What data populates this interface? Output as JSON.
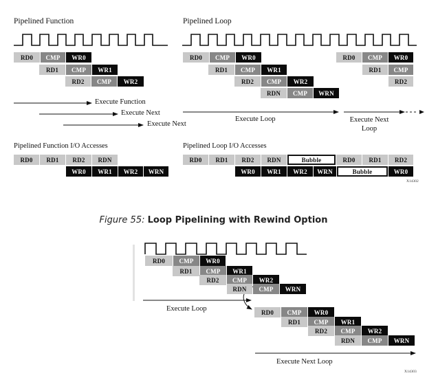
{
  "figure_top": {
    "pipelined_function": {
      "title": "Pipelined Function",
      "ops": {
        "rd0": "RD0",
        "rd1": "RD1",
        "rd2": "RD2",
        "cmp": "CMP",
        "wr0": "WR0",
        "wr1": "WR1",
        "wr2": "WR2"
      },
      "arrows": [
        "Execute Function",
        "Execute Next",
        "Execute Next"
      ]
    },
    "pipelined_loop": {
      "title": "Pipelined Loop",
      "ops": {
        "rd0": "RD0",
        "rd1": "RD1",
        "rd2": "RD2",
        "rdn": "RDN",
        "cmp": "CMP",
        "wr0": "WR0",
        "wr1": "WR1",
        "wr2": "WR2",
        "wrn": "WRN"
      },
      "arrows": [
        "Execute Loop",
        "Execute Next Loop"
      ]
    },
    "function_io": {
      "title": "Pipelined Function I/O Accesses",
      "reads": [
        "RD0",
        "RD1",
        "RD2",
        "RDN"
      ],
      "writes": [
        "WR0",
        "WR1",
        "WR2",
        "WRN"
      ]
    },
    "loop_io": {
      "title": "Pipelined Loop I/O Accesses",
      "reads": [
        "RD0",
        "RD1",
        "RD2",
        "RDN",
        "Bubble",
        "RD0",
        "RD1",
        "RD2"
      ],
      "writes": [
        "WR0",
        "WR1",
        "WR2",
        "WRN",
        "Bubble",
        "WR0"
      ]
    },
    "tag": "X14302"
  },
  "caption": {
    "number": "Figure 55:",
    "title": "Loop Pipelining with Rewind Option"
  },
  "figure_bottom": {
    "ops": {
      "rd0": "RD0",
      "rd1": "RD1",
      "rd2": "RD2",
      "rdn": "RDN",
      "cmp": "CMP",
      "wr0": "WR0",
      "wr1": "WR1",
      "wr2": "WR2",
      "wrn": "WRN"
    },
    "arrows": [
      "Execute Loop",
      "Execute Next Loop"
    ],
    "tag": "X14303"
  }
}
